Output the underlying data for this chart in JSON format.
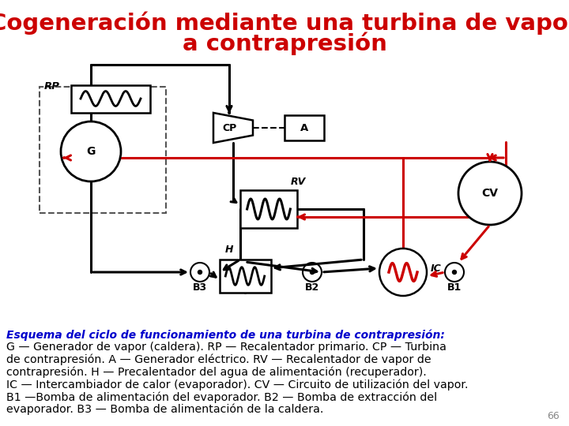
{
  "title_line1": "Cogeneración mediante una turbina de vapor",
  "title_line2": "a contrapresión",
  "title_color": "#cc0000",
  "title_fontsize": 21,
  "bg_color": "#ffffff",
  "caption_line": "Esquema del ciclo de funcionamiento de una turbina de contrapresión:",
  "caption_color": "#0000cc",
  "body_lines": [
    "G — Generador de vapor (caldera). RP — Recalentador primario. CP — Turbina",
    "de contrapresión. A — Generador eléctrico. RV — Recalentador de vapor de",
    "contrapresión. H — Precalentador del agua de alimentación (recuperador).",
    "IC — Intercambiador de calor (evaporador). CV — Circuito de utilización del vapor.",
    "B1 —Bomba de alimentación del evaporador. B2 — Bomba de extracción del",
    "evaporador. B3 — Bomba de alimentación de la caldera."
  ],
  "page_number": "66",
  "text_color": "#000000",
  "red": "#cc0000",
  "black": "#000000",
  "body_fontsize": 10.2,
  "caption_fontsize": 10.0,
  "lw_black": 2.2,
  "lw_red": 2.2
}
